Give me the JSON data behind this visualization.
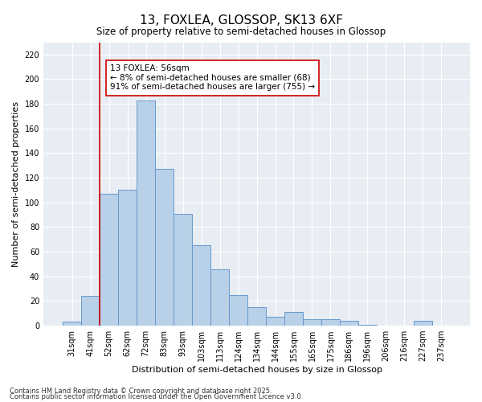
{
  "title1": "13, FOXLEA, GLOSSOP, SK13 6XF",
  "title2": "Size of property relative to semi-detached houses in Glossop",
  "xlabel": "Distribution of semi-detached houses by size in Glossop",
  "ylabel": "Number of semi-detached properties",
  "categories": [
    "31sqm",
    "41sqm",
    "52sqm",
    "62sqm",
    "72sqm",
    "83sqm",
    "93sqm",
    "103sqm",
    "113sqm",
    "124sqm",
    "134sqm",
    "144sqm",
    "155sqm",
    "165sqm",
    "175sqm",
    "186sqm",
    "196sqm",
    "206sqm",
    "216sqm",
    "227sqm",
    "237sqm"
  ],
  "values": [
    3,
    24,
    107,
    110,
    183,
    127,
    91,
    65,
    46,
    25,
    15,
    7,
    11,
    5,
    5,
    4,
    1,
    0,
    0,
    4,
    0
  ],
  "bar_color": "#b8d0e8",
  "bar_edge_color": "#6699cc",
  "vline_x_idx": 1.5,
  "vline_color": "#cc0000",
  "annotation_text": "13 FOXLEA: 56sqm\n← 8% of semi-detached houses are smaller (68)\n91% of semi-detached houses are larger (755) →",
  "annotation_fontsize": 7.5,
  "annotation_box_color": "#ffffff",
  "annotation_edge_color": "#cc0000",
  "ylim": [
    0,
    230
  ],
  "yticks": [
    0,
    20,
    40,
    60,
    80,
    100,
    120,
    140,
    160,
    180,
    200,
    220
  ],
  "bg_color": "#e8edf4",
  "footer1": "Contains HM Land Registry data © Crown copyright and database right 2025.",
  "footer2": "Contains public sector information licensed under the Open Government Licence v3.0.",
  "title1_fontsize": 11,
  "title2_fontsize": 8.5,
  "xlabel_fontsize": 8,
  "ylabel_fontsize": 8,
  "tick_fontsize": 7
}
